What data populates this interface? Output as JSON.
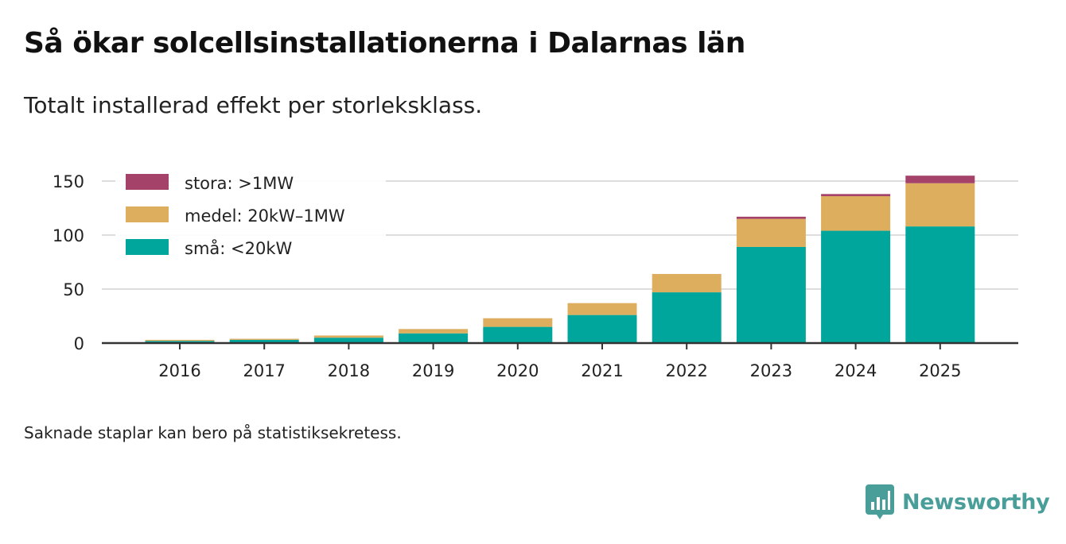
{
  "title": "Så ökar solcellsinstallationerna i Dalarnas län",
  "subtitle": "Totalt installerad effekt per storleksklass.",
  "footnote": "Saknade staplar kan bero på statistiksekretess.",
  "brand": {
    "name": "Newsworthy",
    "icon": "newsworthy-logo-icon",
    "color": "#4a9e9a"
  },
  "chart_data": {
    "type": "bar",
    "stacked": true,
    "title": "Så ökar solcellsinstallationerna i Dalarnas län",
    "subtitle": "Totalt installerad effekt per storleksklass.",
    "xlabel": "",
    "ylabel": "",
    "ylim": [
      0,
      160
    ],
    "yticks": [
      0,
      50,
      100,
      150
    ],
    "grid": true,
    "legend_position": "top-left",
    "categories": [
      "2016",
      "2017",
      "2018",
      "2019",
      "2020",
      "2021",
      "2022",
      "2023",
      "2024",
      "2025"
    ],
    "series": [
      {
        "name": "små: <20kW",
        "color": "#00a69c",
        "values": [
          2,
          3,
          5,
          9,
          15,
          26,
          47,
          89,
          104,
          108
        ]
      },
      {
        "name": "medel: 20kW–1MW",
        "color": "#dcae5d",
        "values": [
          1,
          1,
          2,
          4,
          8,
          11,
          17,
          26,
          32,
          40
        ]
      },
      {
        "name": "stora: >1MW",
        "color": "#a4426a",
        "values": [
          0,
          0,
          0,
          0,
          0,
          0,
          0,
          2,
          2,
          7
        ]
      }
    ],
    "legend_order": [
      "stora: >1MW",
      "medel: 20kW–1MW",
      "små: <20kW"
    ]
  }
}
